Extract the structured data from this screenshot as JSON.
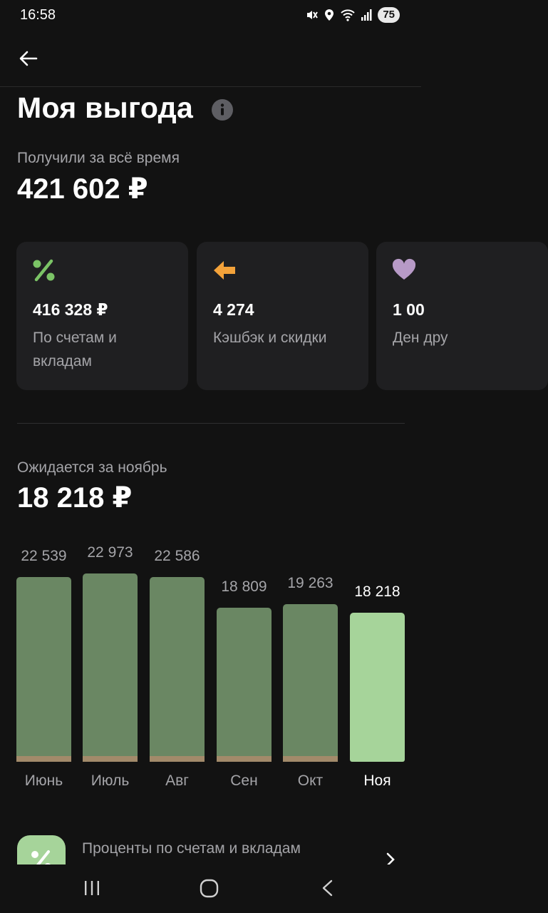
{
  "status_bar": {
    "time": "16:58",
    "battery": "75"
  },
  "header": {
    "title": "Моя выгода"
  },
  "summary": {
    "label": "Получили за всё время",
    "value": "421 602 ₽"
  },
  "cards": [
    {
      "icon": "percent-icon",
      "color": "#7bc466",
      "value": "416 328 ₽",
      "label": "По счетам и вкладам"
    },
    {
      "icon": "arrow-left-icon",
      "color": "#f3a23a",
      "value": "4 274",
      "label": "Кэшбэк и скидки"
    },
    {
      "icon": "heart-icon",
      "color": "#b79ac7",
      "value": "1 00",
      "label": "Ден дру"
    }
  ],
  "expected": {
    "label": "Ожидается за ноябрь",
    "value": "18 218 ₽"
  },
  "chart_data": {
    "type": "bar",
    "categories": [
      "Июнь",
      "Июль",
      "Авг",
      "Сен",
      "Окт",
      "Ноя"
    ],
    "values": [
      22539,
      22973,
      22586,
      18809,
      19263,
      18218
    ],
    "value_labels": [
      "22 539",
      "22 973",
      "22 586",
      "18 809",
      "19 263",
      "18 218"
    ],
    "highlighted_index": 5,
    "colors": {
      "past": "#6a8763",
      "current": "#a6d49a",
      "base_strip": "#a28a6a"
    }
  },
  "list_item": {
    "label": "Проценты по счетам и вкладам"
  },
  "colors": {
    "background": "#121212",
    "card": "#1f1f21",
    "muted_text": "#a4a4a8"
  }
}
